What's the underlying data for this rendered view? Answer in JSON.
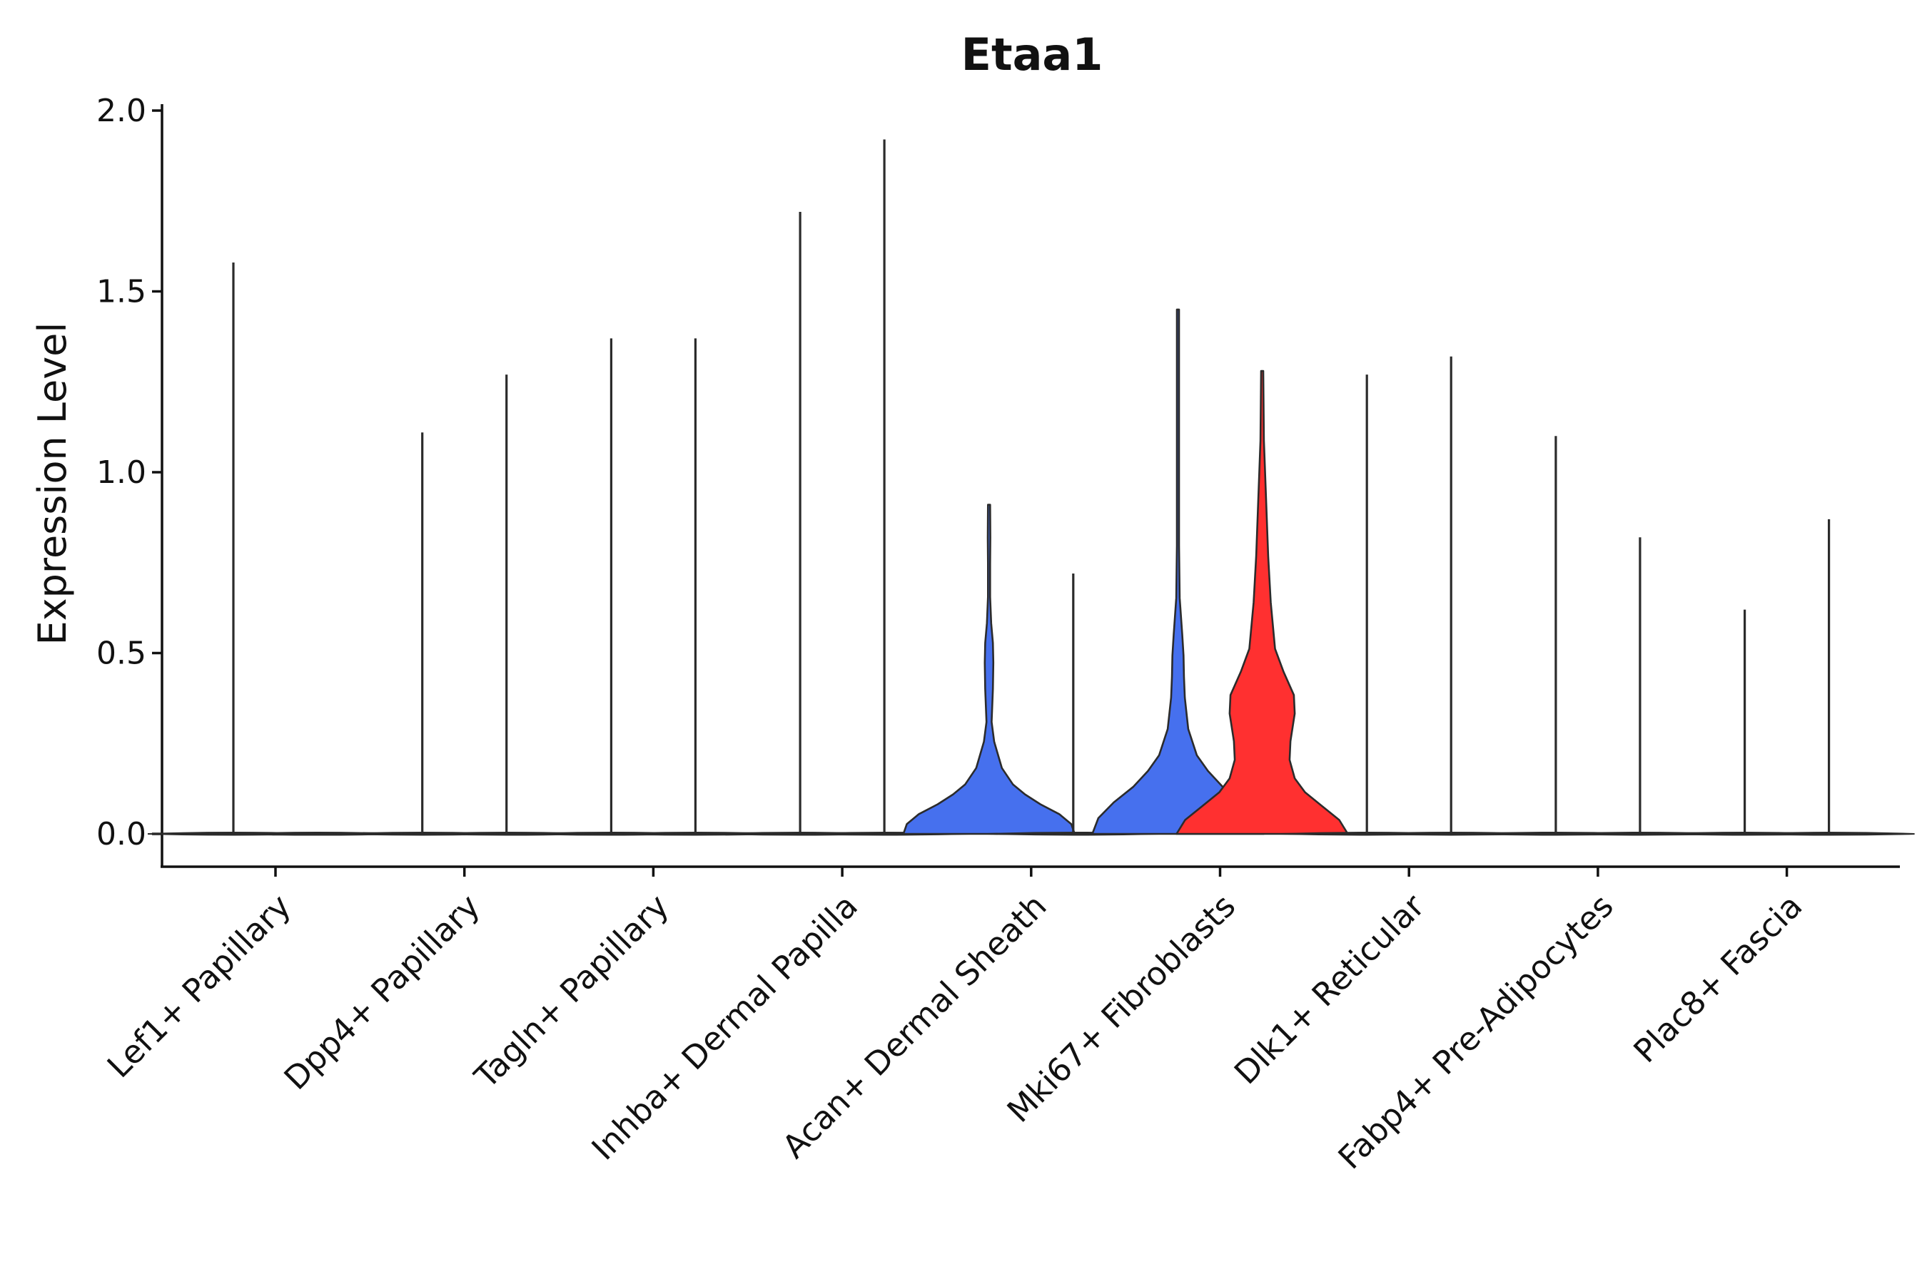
{
  "chart_data": {
    "type": "violin",
    "title": "Etaa1",
    "xlabel": "",
    "ylabel": "Expression Level",
    "ylim": [
      -0.1,
      2.02
    ],
    "yticks": [
      0.0,
      0.5,
      1.0,
      1.5,
      2.0
    ],
    "ytick_labels": [
      "0.0",
      "0.5",
      "1.0",
      "1.5",
      "2.0"
    ],
    "categories": [
      "Lef1+ Papillary",
      "Dpp4+ Papillary",
      "Tagln+ Papillary",
      "Inhba+ Dermal Papilla",
      "Acan+ Dermal Sheath",
      "Mki67+ Fibroblasts",
      "Dlk1+ Reticular",
      "Fabp4+ Pre-Adipocytes",
      "Plac8+ Fascia"
    ],
    "split_groups": [
      "group_1",
      "group_2"
    ],
    "colors": {
      "group_1": "#4670EE",
      "group_2": "#FF3030",
      "outline": "#2b2b2b"
    },
    "violins": [
      {
        "category": "Lef1+ Papillary",
        "group": "group_1",
        "max": 1.58,
        "filled": false
      },
      {
        "category": "Lef1+ Papillary",
        "group": "group_2",
        "max": 0.0,
        "filled": false
      },
      {
        "category": "Dpp4+ Papillary",
        "group": "group_1",
        "max": 1.11,
        "filled": false
      },
      {
        "category": "Dpp4+ Papillary",
        "group": "group_2",
        "max": 1.27,
        "filled": false
      },
      {
        "category": "Tagln+ Papillary",
        "group": "group_1",
        "max": 1.37,
        "filled": false
      },
      {
        "category": "Tagln+ Papillary",
        "group": "group_2",
        "max": 1.37,
        "filled": false
      },
      {
        "category": "Inhba+ Dermal Papilla",
        "group": "group_1",
        "max": 1.72,
        "filled": false
      },
      {
        "category": "Inhba+ Dermal Papilla",
        "group": "group_2",
        "max": 1.92,
        "filled": false
      },
      {
        "category": "Acan+ Dermal Sheath",
        "group": "group_1",
        "max": 0.91,
        "filled": true,
        "profile": "a"
      },
      {
        "category": "Acan+ Dermal Sheath",
        "group": "group_2",
        "max": 0.72,
        "filled": false
      },
      {
        "category": "Mki67+ Fibroblasts",
        "group": "group_1",
        "max": 1.45,
        "filled": true,
        "profile": "b"
      },
      {
        "category": "Mki67+ Fibroblasts",
        "group": "group_2",
        "max": 1.28,
        "filled": true,
        "profile": "c"
      },
      {
        "category": "Dlk1+ Reticular",
        "group": "group_1",
        "max": 1.27,
        "filled": false
      },
      {
        "category": "Dlk1+ Reticular",
        "group": "group_2",
        "max": 1.32,
        "filled": false
      },
      {
        "category": "Fabp4+ Pre-Adipocytes",
        "group": "group_1",
        "max": 1.1,
        "filled": false
      },
      {
        "category": "Fabp4+ Pre-Adipocytes",
        "group": "group_2",
        "max": 0.82,
        "filled": false
      },
      {
        "category": "Plac8+ Fascia",
        "group": "group_1",
        "max": 0.62,
        "filled": false
      },
      {
        "category": "Plac8+ Fascia",
        "group": "group_2",
        "max": 0.87,
        "filled": false
      }
    ]
  }
}
